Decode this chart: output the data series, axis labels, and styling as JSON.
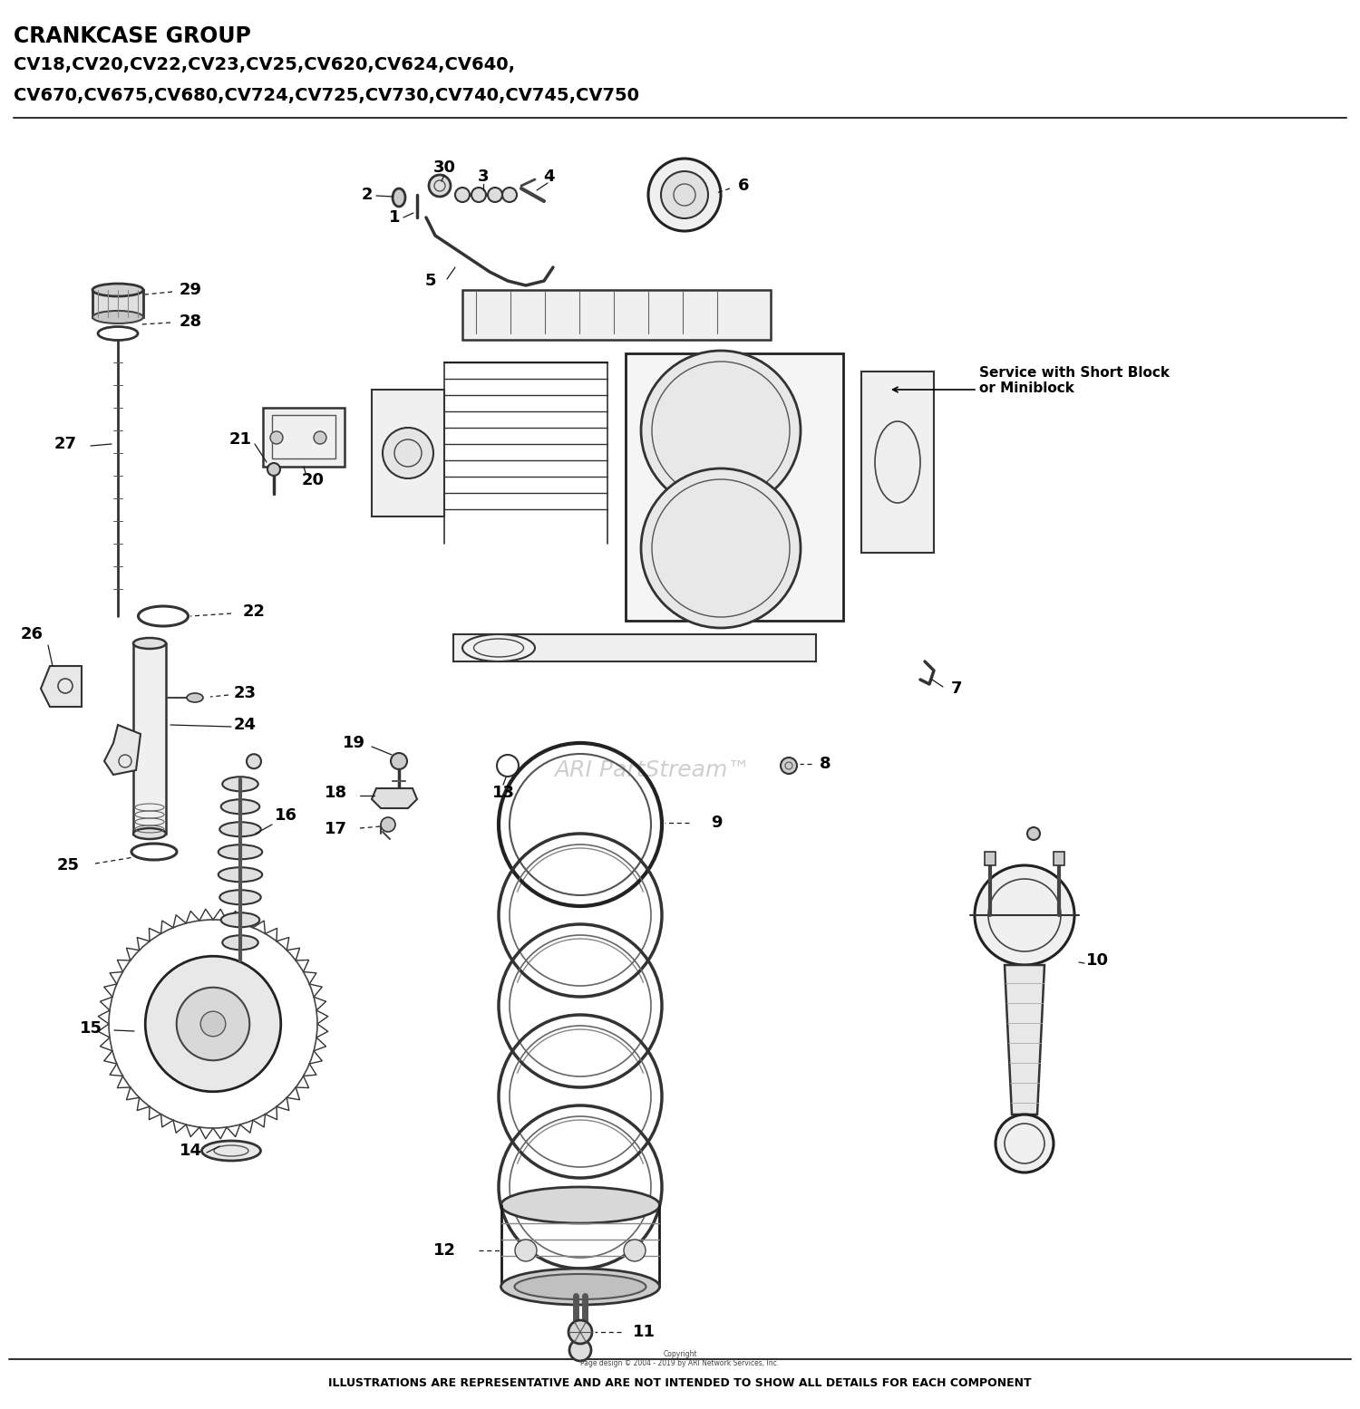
{
  "title_line1": "CRANKCASE GROUP",
  "title_line2": "CV18,CV20,CV22,CV23,CV25,CV620,CV624,CV640,",
  "title_line3": "CV670,CV675,CV680,CV724,CV725,CV730,CV740,CV745,CV750",
  "footer_text": "ILLUSTRATIONS ARE REPRESENTATIVE AND ARE NOT INTENDED TO SHOW ALL DETAILS FOR EACH COMPONENT",
  "copyright_text": "Copyright\nPage design © 2004 - 2019 by ARI Network Services, Inc.",
  "watermark": "ARI PartStream™",
  "service_note": "Service with Short Block\nor Miniblock",
  "bg_color": "#ffffff",
  "line_color": "#000000",
  "part_color": "#1a1a1a"
}
